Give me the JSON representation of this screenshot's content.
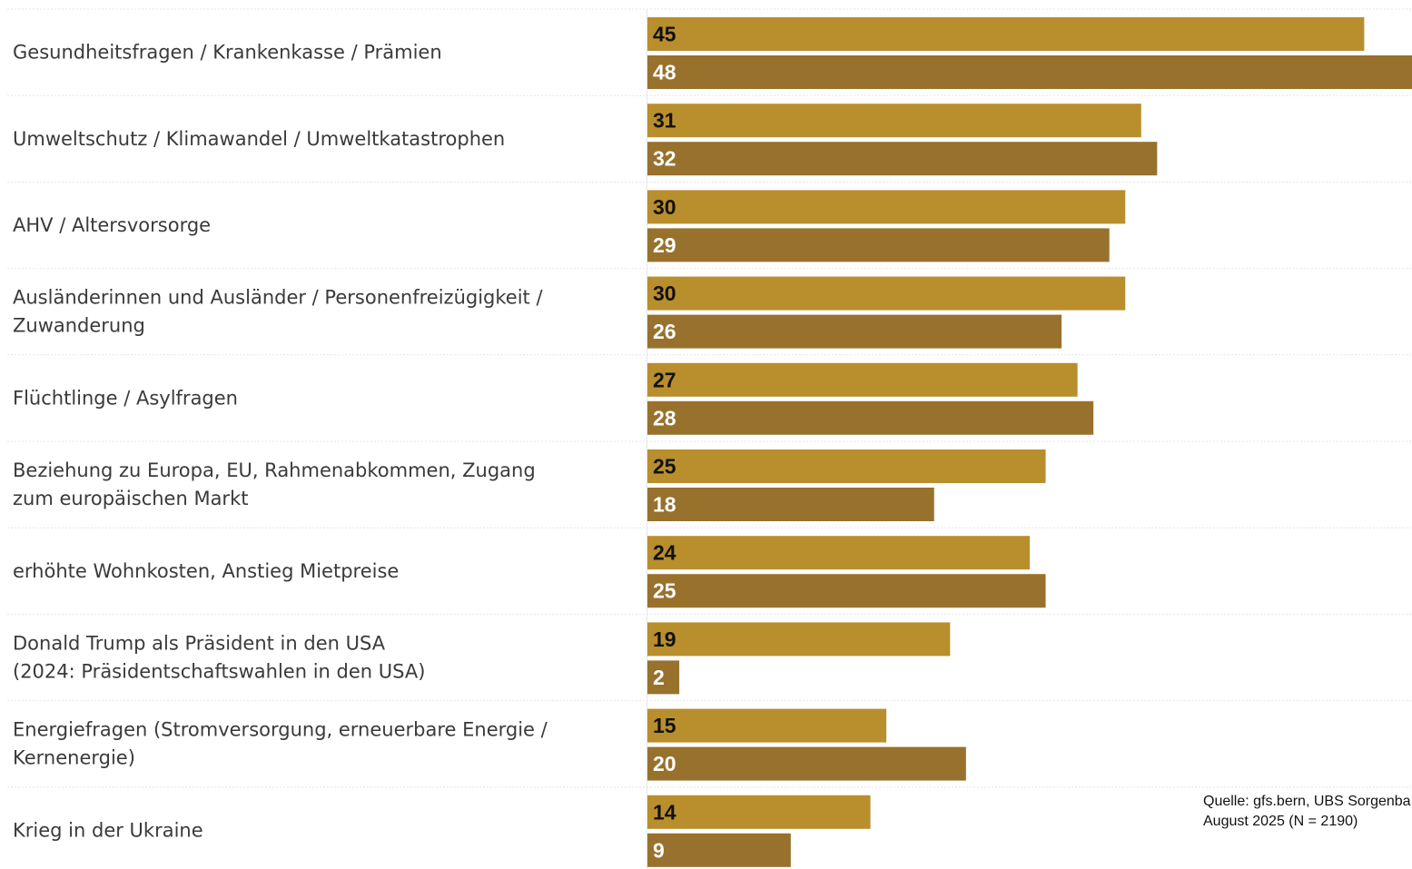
{
  "colors": {
    "series_2025": "#b98e2d",
    "series_2024": "#98712d",
    "label_dark": "#111111",
    "label_light": "#ffffff",
    "separator": "#e6e6e6"
  },
  "source": {
    "line1": "Quelle: gfs.bern, UBS Sorgenba",
    "line2": "August 2025 (N = 2190)"
  },
  "chart_data": {
    "type": "bar",
    "orientation": "horizontal",
    "categories": [
      [
        "Gesundheitsfragen / Krankenkasse / Prämien"
      ],
      [
        "Umweltschutz / Klimawandel / Umweltkatastrophen"
      ],
      [
        "AHV / Altersvorsorge"
      ],
      [
        "Ausländerinnen und Ausländer / Personenfreizügigkeit /",
        "Zuwanderung"
      ],
      [
        "Flüchtlinge / Asylfragen"
      ],
      [
        "Beziehung zu Europa, EU, Rahmenabkommen, Zugang",
        "zum europäischen Markt"
      ],
      [
        "erhöhte Wohnkosten, Anstieg Mietpreise"
      ],
      [
        "Donald Trump als Präsident in den USA",
        "(2024: Präsidentschaftswahlen in den USA)"
      ],
      [
        "Energiefragen (Stromversorgung, erneuerbare Energie /",
        "Kernenergie)"
      ],
      [
        "Krieg in der Ukraine"
      ]
    ],
    "series": [
      {
        "values": [
          45,
          31,
          30,
          30,
          27,
          25,
          24,
          19,
          15,
          14
        ]
      },
      {
        "values": [
          48,
          32,
          29,
          26,
          28,
          18,
          25,
          2,
          20,
          9
        ]
      }
    ],
    "xlim": [
      0,
      48
    ]
  }
}
